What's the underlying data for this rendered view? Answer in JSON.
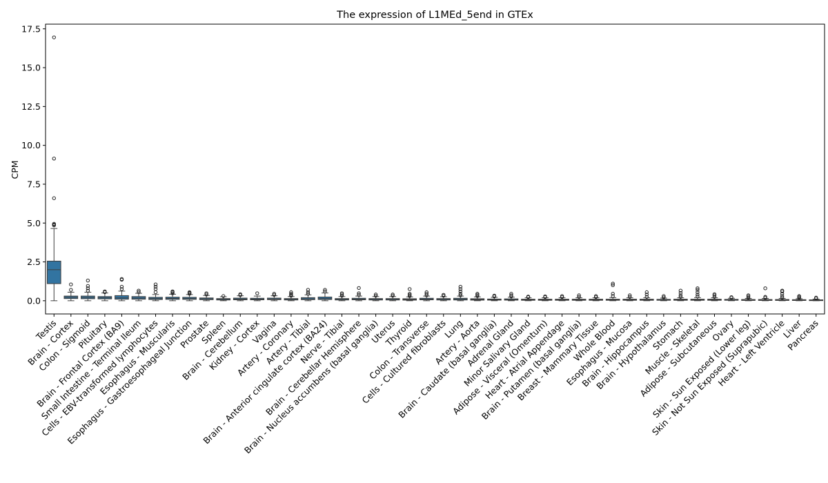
{
  "chart_data": {
    "type": "box",
    "title": "The expression of L1MEd_5end in GTEx",
    "xlabel": "",
    "ylabel": "CPM",
    "ylim": [
      -0.85,
      17.8
    ],
    "yticks": [
      0.0,
      2.5,
      5.0,
      7.5,
      10.0,
      12.5,
      15.0,
      17.5
    ],
    "ytick_labels": [
      "0.0",
      "2.5",
      "5.0",
      "7.5",
      "10.0",
      "12.5",
      "15.0",
      "17.5"
    ],
    "grid": false,
    "legend": "none",
    "box_color": "#3274a1",
    "categories": [
      "Testis",
      "Brain - Cortex",
      "Colon - Sigmoid",
      "Pituitary",
      "Brain - Frontal Cortex (BA9)",
      "Small Intestine - Terminal Ileum",
      "Cells - EBV-transformed lymphocytes",
      "Esophagus - Muscularis",
      "Esophagus - Gastroesophageal Junction",
      "Prostate",
      "Spleen",
      "Brain - Cerebellum",
      "Kidney - Cortex",
      "Vagina",
      "Artery - Coronary",
      "Artery - Tibial",
      "Brain - Anterior cingulate cortex (BA24)",
      "Nerve - Tibial",
      "Brain - Cerebellar Hemisphere",
      "Brain - Nucleus accumbens (basal ganglia)",
      "Uterus",
      "Thyroid",
      "Colon - Transverse",
      "Cells - Cultured fibroblasts",
      "Lung",
      "Artery - Aorta",
      "Brain - Caudate (basal ganglia)",
      "Adrenal Gland",
      "Minor Salivary Gland",
      "Adipose - Visceral (Omentum)",
      "Heart - Atrial Appendage",
      "Brain - Putamen (basal ganglia)",
      "Breast - Mammary Tissue",
      "Whole Blood",
      "Esophagus - Mucosa",
      "Brain - Hippocampus",
      "Brain - Hypothalamus",
      "Stomach",
      "Muscle - Skeletal",
      "Adipose - Subcutaneous",
      "Ovary",
      "Skin - Sun Exposed (Lower leg)",
      "Skin - Not Sun Exposed (Suprapubic)",
      "Heart - Left Ventricle",
      "Liver",
      "Pancreas"
    ],
    "boxes": [
      {
        "min": 0.0,
        "q1": 1.1,
        "median": 2.0,
        "q3": 2.55,
        "max": 4.65,
        "outliers": [
          4.85,
          4.9,
          4.95,
          6.6,
          9.15,
          16.95
        ]
      },
      {
        "min": 0.0,
        "q1": 0.14,
        "median": 0.22,
        "q3": 0.3,
        "max": 0.55,
        "outliers": [
          0.7,
          1.05
        ]
      },
      {
        "min": 0.0,
        "q1": 0.13,
        "median": 0.21,
        "q3": 0.3,
        "max": 0.55,
        "outliers": [
          0.65,
          0.8,
          0.95,
          1.3
        ]
      },
      {
        "min": 0.0,
        "q1": 0.12,
        "median": 0.19,
        "q3": 0.27,
        "max": 0.5,
        "outliers": [
          0.55,
          0.6
        ]
      },
      {
        "min": 0.0,
        "q1": 0.1,
        "median": 0.18,
        "q3": 0.33,
        "max": 0.62,
        "outliers": [
          0.75,
          0.9,
          1.35,
          1.4
        ]
      },
      {
        "min": 0.0,
        "q1": 0.1,
        "median": 0.17,
        "q3": 0.27,
        "max": 0.48,
        "outliers": [
          0.55,
          0.65
        ]
      },
      {
        "min": 0.0,
        "q1": 0.08,
        "median": 0.14,
        "q3": 0.22,
        "max": 0.4,
        "outliers": [
          0.55,
          0.75,
          0.9,
          1.05
        ]
      },
      {
        "min": 0.0,
        "q1": 0.09,
        "median": 0.15,
        "q3": 0.23,
        "max": 0.42,
        "outliers": [
          0.48,
          0.55,
          0.6
        ]
      },
      {
        "min": 0.0,
        "q1": 0.09,
        "median": 0.14,
        "q3": 0.22,
        "max": 0.4,
        "outliers": [
          0.45,
          0.5,
          0.55
        ]
      },
      {
        "min": 0.0,
        "q1": 0.07,
        "median": 0.12,
        "q3": 0.18,
        "max": 0.34,
        "outliers": [
          0.4,
          0.48
        ]
      },
      {
        "min": 0.0,
        "q1": 0.05,
        "median": 0.09,
        "q3": 0.14,
        "max": 0.26,
        "outliers": [
          0.3
        ]
      },
      {
        "min": 0.0,
        "q1": 0.06,
        "median": 0.11,
        "q3": 0.17,
        "max": 0.32,
        "outliers": [
          0.36,
          0.42
        ]
      },
      {
        "min": 0.0,
        "q1": 0.06,
        "median": 0.1,
        "q3": 0.16,
        "max": 0.3,
        "outliers": [
          0.48
        ]
      },
      {
        "min": 0.0,
        "q1": 0.07,
        "median": 0.11,
        "q3": 0.17,
        "max": 0.32,
        "outliers": [
          0.38,
          0.45
        ]
      },
      {
        "min": 0.0,
        "q1": 0.05,
        "median": 0.09,
        "q3": 0.14,
        "max": 0.27,
        "outliers": [
          0.32,
          0.38,
          0.45,
          0.55
        ]
      },
      {
        "min": 0.0,
        "q1": 0.07,
        "median": 0.12,
        "q3": 0.2,
        "max": 0.38,
        "outliers": [
          0.45,
          0.55,
          0.7
        ]
      },
      {
        "min": 0.0,
        "q1": 0.08,
        "median": 0.14,
        "q3": 0.24,
        "max": 0.5,
        "outliers": [
          0.6,
          0.7
        ]
      },
      {
        "min": 0.0,
        "q1": 0.05,
        "median": 0.09,
        "q3": 0.14,
        "max": 0.27,
        "outliers": [
          0.32,
          0.4,
          0.48
        ]
      },
      {
        "min": 0.0,
        "q1": 0.06,
        "median": 0.1,
        "q3": 0.16,
        "max": 0.3,
        "outliers": [
          0.38,
          0.48,
          0.82
        ]
      },
      {
        "min": 0.0,
        "q1": 0.05,
        "median": 0.09,
        "q3": 0.14,
        "max": 0.27,
        "outliers": [
          0.32,
          0.4
        ]
      },
      {
        "min": 0.0,
        "q1": 0.05,
        "median": 0.09,
        "q3": 0.14,
        "max": 0.27,
        "outliers": [
          0.33,
          0.4
        ]
      },
      {
        "min": 0.0,
        "q1": 0.04,
        "median": 0.08,
        "q3": 0.13,
        "max": 0.25,
        "outliers": [
          0.3,
          0.38,
          0.45,
          0.75
        ]
      },
      {
        "min": 0.0,
        "q1": 0.06,
        "median": 0.1,
        "q3": 0.16,
        "max": 0.3,
        "outliers": [
          0.35,
          0.45,
          0.55
        ]
      },
      {
        "min": 0.0,
        "q1": 0.05,
        "median": 0.09,
        "q3": 0.14,
        "max": 0.26,
        "outliers": [
          0.32,
          0.38
        ]
      },
      {
        "min": 0.0,
        "q1": 0.05,
        "median": 0.1,
        "q3": 0.16,
        "max": 0.3,
        "outliers": [
          0.35,
          0.45,
          0.6,
          0.75,
          0.9
        ]
      },
      {
        "min": 0.0,
        "q1": 0.04,
        "median": 0.08,
        "q3": 0.13,
        "max": 0.25,
        "outliers": [
          0.3,
          0.38,
          0.45
        ]
      },
      {
        "min": 0.0,
        "q1": 0.04,
        "median": 0.07,
        "q3": 0.11,
        "max": 0.22,
        "outliers": [
          0.28,
          0.33
        ]
      },
      {
        "min": 0.0,
        "q1": 0.04,
        "median": 0.07,
        "q3": 0.12,
        "max": 0.23,
        "outliers": [
          0.28,
          0.35,
          0.45
        ]
      },
      {
        "min": 0.0,
        "q1": 0.03,
        "median": 0.06,
        "q3": 0.1,
        "max": 0.19,
        "outliers": [
          0.23,
          0.27
        ]
      },
      {
        "min": 0.0,
        "q1": 0.03,
        "median": 0.06,
        "q3": 0.1,
        "max": 0.19,
        "outliers": [
          0.24,
          0.28
        ]
      },
      {
        "min": 0.0,
        "q1": 0.03,
        "median": 0.06,
        "q3": 0.1,
        "max": 0.19,
        "outliers": [
          0.24,
          0.3
        ]
      },
      {
        "min": 0.0,
        "q1": 0.03,
        "median": 0.06,
        "q3": 0.1,
        "max": 0.19,
        "outliers": [
          0.25,
          0.35
        ]
      },
      {
        "min": 0.0,
        "q1": 0.03,
        "median": 0.06,
        "q3": 0.1,
        "max": 0.19,
        "outliers": [
          0.24,
          0.3
        ]
      },
      {
        "min": 0.0,
        "q1": 0.03,
        "median": 0.06,
        "q3": 0.1,
        "max": 0.2,
        "outliers": [
          0.3,
          0.45,
          1.0,
          1.1
        ]
      },
      {
        "min": 0.0,
        "q1": 0.03,
        "median": 0.06,
        "q3": 0.1,
        "max": 0.19,
        "outliers": [
          0.25,
          0.35
        ]
      },
      {
        "min": 0.0,
        "q1": 0.03,
        "median": 0.06,
        "q3": 0.1,
        "max": 0.19,
        "outliers": [
          0.25,
          0.4,
          0.55
        ]
      },
      {
        "min": 0.0,
        "q1": 0.03,
        "median": 0.05,
        "q3": 0.09,
        "max": 0.17,
        "outliers": [
          0.22,
          0.3
        ]
      },
      {
        "min": 0.0,
        "q1": 0.03,
        "median": 0.06,
        "q3": 0.1,
        "max": 0.19,
        "outliers": [
          0.25,
          0.35,
          0.5,
          0.65
        ]
      },
      {
        "min": 0.0,
        "q1": 0.03,
        "median": 0.06,
        "q3": 0.1,
        "max": 0.2,
        "outliers": [
          0.28,
          0.4,
          0.55,
          0.7,
          0.8
        ]
      },
      {
        "min": 0.0,
        "q1": 0.03,
        "median": 0.06,
        "q3": 0.1,
        "max": 0.19,
        "outliers": [
          0.25,
          0.35,
          0.42
        ]
      },
      {
        "min": 0.0,
        "q1": 0.03,
        "median": 0.05,
        "q3": 0.09,
        "max": 0.16,
        "outliers": [
          0.2,
          0.23
        ]
      },
      {
        "min": 0.0,
        "q1": 0.02,
        "median": 0.05,
        "q3": 0.08,
        "max": 0.15,
        "outliers": [
          0.2,
          0.28,
          0.35
        ]
      },
      {
        "min": 0.0,
        "q1": 0.02,
        "median": 0.05,
        "q3": 0.08,
        "max": 0.15,
        "outliers": [
          0.2,
          0.25,
          0.8
        ]
      },
      {
        "min": 0.0,
        "q1": 0.02,
        "median": 0.05,
        "q3": 0.08,
        "max": 0.15,
        "outliers": [
          0.2,
          0.3,
          0.45,
          0.6,
          0.65
        ]
      },
      {
        "min": 0.0,
        "q1": 0.02,
        "median": 0.04,
        "q3": 0.07,
        "max": 0.13,
        "outliers": [
          0.18,
          0.25,
          0.3
        ]
      },
      {
        "min": 0.0,
        "q1": 0.01,
        "median": 0.03,
        "q3": 0.06,
        "max": 0.11,
        "outliers": [
          0.15,
          0.2
        ]
      }
    ]
  }
}
